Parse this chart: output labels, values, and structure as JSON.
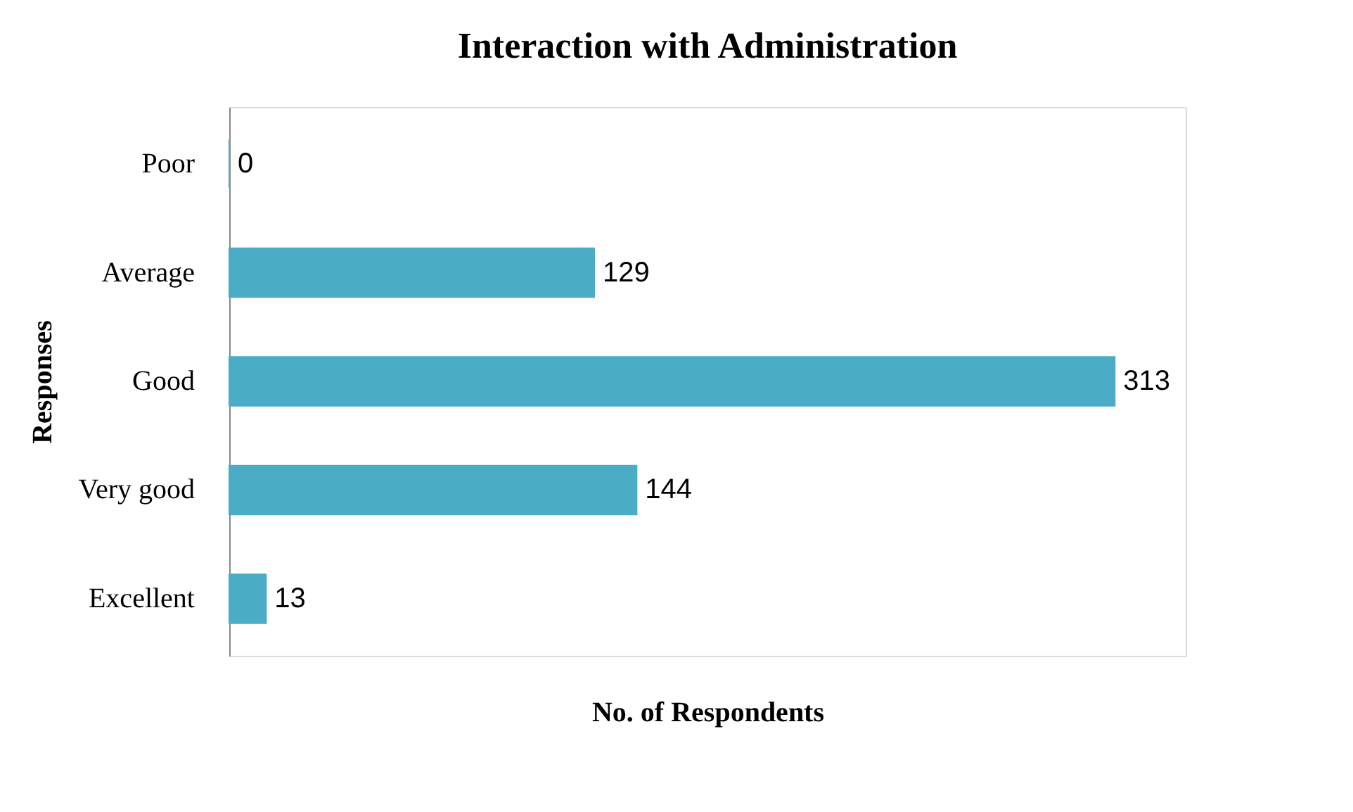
{
  "chart_data": {
    "type": "bar",
    "title": "Interaction with Administration",
    "xlabel": "No. of Respondents",
    "ylabel": "Responses",
    "orientation": "horizontal",
    "categories": [
      "Poor",
      "Average",
      "Good",
      "Very good",
      "Excellent"
    ],
    "values": [
      0,
      129,
      313,
      144,
      13
    ],
    "color": "#4bacc6",
    "data_labels": true,
    "tick_labels": "y"
  }
}
